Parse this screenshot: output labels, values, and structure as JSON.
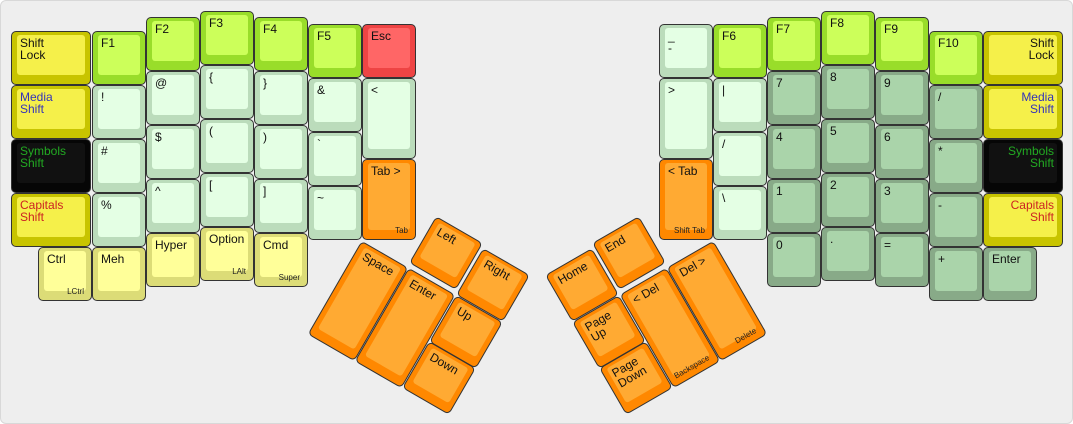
{
  "colors": {
    "shift_key": "#f5f04a",
    "function_key": "#ccff5a",
    "symbol_key": "#e4ffe4",
    "number_key": "#aad4aa",
    "modifier_key": "#ffff99",
    "escape_key": "#ff6666",
    "navigation_key": "#ffaa33",
    "symbols_shift_key": "#111111",
    "media_label": "#3333bb",
    "symbols_label": "#22aa22",
    "capitals_label": "#cc2222"
  },
  "left_hand": {
    "keys": [
      {
        "label": "Shift\nLock",
        "style": "yellow"
      },
      {
        "label": "Media\nShift",
        "style": "yellow",
        "text_color": "#3333bb"
      },
      {
        "label": "Symbols\nShift",
        "style": "black",
        "text_color": "#22aa22"
      },
      {
        "label": "Capitals\nShift",
        "style": "yellow",
        "text_color": "#cc2222"
      },
      {
        "label": "Ctrl",
        "legend": "LCtrl",
        "style": "mod"
      },
      {
        "label": "F1",
        "style": "fn"
      },
      {
        "label": "!",
        "style": "sym"
      },
      {
        "label": "#",
        "style": "sym"
      },
      {
        "label": "%",
        "style": "sym"
      },
      {
        "label": "Meh",
        "style": "mod"
      },
      {
        "label": "F2",
        "style": "fn"
      },
      {
        "label": "@",
        "style": "sym"
      },
      {
        "label": "$",
        "style": "sym"
      },
      {
        "label": "^",
        "style": "sym"
      },
      {
        "label": "Hyper",
        "style": "mod"
      },
      {
        "label": "F3",
        "style": "fn"
      },
      {
        "label": "{",
        "style": "sym"
      },
      {
        "label": "(",
        "style": "sym"
      },
      {
        "label": "[",
        "style": "sym"
      },
      {
        "label": "Option",
        "legend": "LAlt",
        "style": "mod"
      },
      {
        "label": "F4",
        "style": "fn"
      },
      {
        "label": "}",
        "style": "sym"
      },
      {
        "label": ")",
        "style": "sym"
      },
      {
        "label": "]",
        "style": "sym"
      },
      {
        "label": "Cmd",
        "legend": "Super",
        "style": "mod"
      },
      {
        "label": "F5",
        "style": "fn"
      },
      {
        "label": "&",
        "style": "sym"
      },
      {
        "label": "`",
        "style": "sym"
      },
      {
        "label": "~",
        "style": "sym"
      },
      {
        "label": "Esc",
        "style": "esc"
      },
      {
        "label": "<",
        "style": "sym"
      },
      {
        "label": "Tab >",
        "legend": "Tab",
        "style": "orange"
      }
    ],
    "thumb_keys": [
      {
        "label": "Space",
        "style": "orange"
      },
      {
        "label": "Enter",
        "style": "orange"
      },
      {
        "label": "Left",
        "style": "orange"
      },
      {
        "label": "Right",
        "style": "orange"
      },
      {
        "label": "Up",
        "style": "orange"
      },
      {
        "label": "Down",
        "style": "orange"
      }
    ]
  },
  "right_hand": {
    "keys": [
      {
        "label": "_\n-",
        "style": "sym"
      },
      {
        "label": ">",
        "style": "sym"
      },
      {
        "label": "< Tab",
        "legend": "Shift Tab",
        "style": "orange"
      },
      {
        "label": "F6",
        "style": "fn"
      },
      {
        "label": "|",
        "style": "sym"
      },
      {
        "label": "/",
        "style": "sym"
      },
      {
        "label": "\\",
        "style": "sym"
      },
      {
        "label": "F7",
        "style": "fn"
      },
      {
        "label": "7",
        "style": "num"
      },
      {
        "label": "4",
        "style": "num"
      },
      {
        "label": "1",
        "style": "num"
      },
      {
        "label": "0",
        "style": "num"
      },
      {
        "label": "F8",
        "style": "fn"
      },
      {
        "label": "8",
        "style": "num"
      },
      {
        "label": "5",
        "style": "num"
      },
      {
        "label": "2",
        "style": "num"
      },
      {
        "label": ".",
        "style": "num"
      },
      {
        "label": "F9",
        "style": "fn"
      },
      {
        "label": "9",
        "style": "num"
      },
      {
        "label": "6",
        "style": "num"
      },
      {
        "label": "3",
        "style": "num"
      },
      {
        "label": "=",
        "style": "num"
      },
      {
        "label": "F10",
        "style": "fn"
      },
      {
        "label": "/",
        "style": "num"
      },
      {
        "label": "*",
        "style": "num"
      },
      {
        "label": "-",
        "style": "num"
      },
      {
        "label": "+",
        "style": "num"
      },
      {
        "label": "Shift\nLock",
        "style": "yellow"
      },
      {
        "label": "Media\nShift",
        "style": "yellow",
        "text_color": "#3333bb"
      },
      {
        "label": "Symbols\nShift",
        "style": "black",
        "text_color": "#22aa22"
      },
      {
        "label": "Capitals\nShift",
        "style": "yellow",
        "text_color": "#cc2222"
      },
      {
        "label": "Enter",
        "style": "num"
      }
    ],
    "thumb_keys": [
      {
        "label": "Home",
        "style": "orange"
      },
      {
        "label": "End",
        "style": "orange"
      },
      {
        "label": "Page\nUp",
        "style": "orange"
      },
      {
        "label": "Page\nDown",
        "style": "orange"
      },
      {
        "label": "< Del",
        "legend": "Backspace",
        "style": "orange"
      },
      {
        "label": "Del >",
        "legend": "Delete",
        "style": "orange"
      }
    ]
  }
}
